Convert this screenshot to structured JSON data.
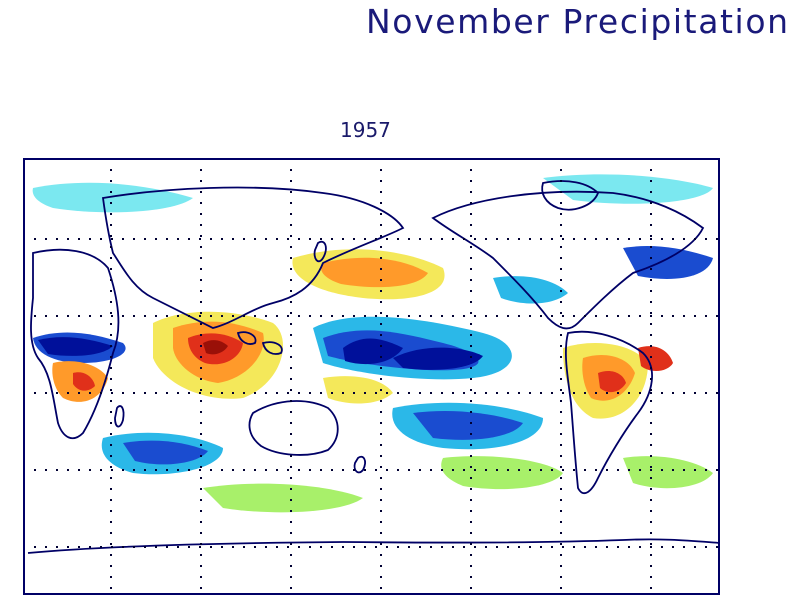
{
  "title": "November Precipitation",
  "year_label": "1957",
  "map": {
    "type": "global precipitation anomaly map",
    "projection": "equirectangular, Pacific-centered",
    "grid": true,
    "colors": {
      "frame": "#000066",
      "coast": "#000066",
      "dark_blue": "#00109a",
      "blue": "#1a4cd0",
      "light_blue": "#2bb8e8",
      "cyan": "#7be8f0",
      "light_green": "#a8f06a",
      "yellow": "#f4e85a",
      "orange": "#ff9a2a",
      "red": "#e0301a",
      "dark_red": "#9a1008"
    }
  }
}
